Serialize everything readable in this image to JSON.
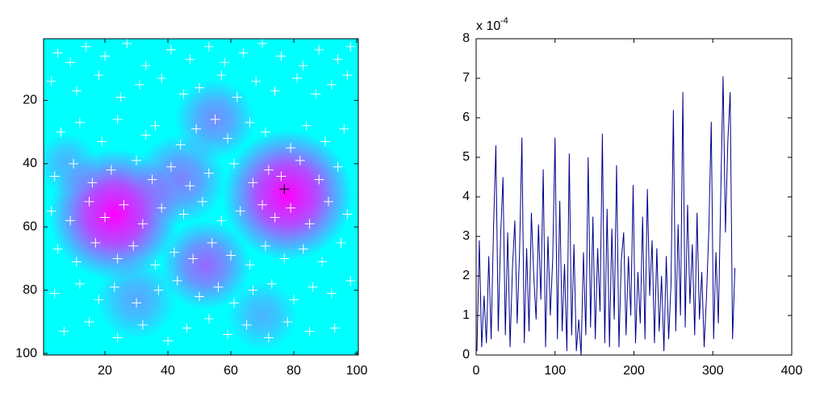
{
  "chart_data": [
    {
      "type": "scatter",
      "xlim": [
        0.5,
        100.5
      ],
      "ylim": [
        0.5,
        100.5
      ],
      "y_reversed": true,
      "xticks": [
        20,
        40,
        60,
        80,
        100
      ],
      "yticks": [
        20,
        40,
        60,
        80,
        100
      ],
      "background_color": "#00ffff",
      "hotspot_color": "#ff00ff",
      "hotspots": [
        {
          "x": 23,
          "y": 56,
          "radius": 13,
          "intensity": 1.0
        },
        {
          "x": 78,
          "y": 50,
          "radius": 13,
          "intensity": 1.0
        },
        {
          "x": 52,
          "y": 72,
          "radius": 9,
          "intensity": 0.6
        },
        {
          "x": 44,
          "y": 45,
          "radius": 9,
          "intensity": 0.5
        },
        {
          "x": 55,
          "y": 26,
          "radius": 8,
          "intensity": 0.45
        },
        {
          "x": 8,
          "y": 40,
          "radius": 6,
          "intensity": 0.3
        },
        {
          "x": 30,
          "y": 83,
          "radius": 8,
          "intensity": 0.35
        },
        {
          "x": 70,
          "y": 88,
          "radius": 7,
          "intensity": 0.3
        }
      ],
      "series": [
        {
          "color": "#ffffff",
          "x": [
            5,
            9,
            14,
            20,
            27,
            33,
            41,
            47,
            53,
            58,
            64,
            70,
            76,
            83,
            88,
            94,
            98,
            3,
            11,
            18,
            25,
            31,
            38,
            45,
            50,
            57,
            62,
            68,
            74,
            81,
            87,
            92,
            97,
            6,
            12,
            19,
            24,
            33,
            36,
            44,
            49,
            55,
            59,
            66,
            71,
            79,
            84,
            90,
            96,
            4,
            10,
            16,
            22,
            30,
            35,
            41,
            47,
            53,
            61,
            67,
            72,
            76,
            82,
            88,
            94,
            3,
            9,
            15,
            20,
            26,
            32,
            38,
            45,
            51,
            57,
            63,
            70,
            74,
            79,
            85,
            91,
            97,
            5,
            11,
            17,
            24,
            29,
            36,
            42,
            48,
            54,
            60,
            66,
            71,
            77,
            83,
            89,
            95,
            4,
            12,
            18,
            23,
            30,
            37,
            43,
            50,
            56,
            61,
            67,
            73,
            80,
            86,
            92,
            98,
            7,
            15,
            24,
            32,
            40,
            46,
            53,
            59,
            65,
            72,
            78,
            85,
            93
          ],
          "y": [
            5,
            8,
            3,
            6,
            2,
            9,
            4,
            7,
            3,
            8,
            5,
            2,
            6,
            9,
            4,
            7,
            3,
            14,
            17,
            12,
            19,
            15,
            13,
            18,
            16,
            12,
            19,
            14,
            17,
            13,
            18,
            15,
            12,
            30,
            27,
            33,
            26,
            31,
            28,
            34,
            29,
            26,
            32,
            27,
            30,
            35,
            28,
            33,
            29,
            44,
            40,
            46,
            42,
            39,
            45,
            41,
            47,
            43,
            40,
            46,
            42,
            44,
            39,
            45,
            41,
            55,
            58,
            52,
            57,
            53,
            59,
            54,
            56,
            52,
            58,
            55,
            53,
            57,
            54,
            59,
            52,
            56,
            67,
            71,
            65,
            70,
            66,
            72,
            68,
            70,
            65,
            69,
            72,
            66,
            70,
            67,
            71,
            65,
            81,
            78,
            83,
            79,
            84,
            80,
            77,
            82,
            79,
            84,
            80,
            78,
            83,
            79,
            81,
            77,
            93,
            90,
            95,
            91,
            96,
            92,
            89,
            94,
            91,
            95,
            90,
            93,
            92
          ]
        },
        {
          "color": "#000000",
          "x": [
            77
          ],
          "y": [
            48
          ]
        }
      ]
    },
    {
      "type": "line",
      "xlim": [
        0,
        400
      ],
      "ylim": [
        0,
        8
      ],
      "xticks": [
        0,
        100,
        200,
        300,
        400
      ],
      "yticks": [
        0,
        1,
        2,
        3,
        4,
        5,
        6,
        7,
        8
      ],
      "y_multiplier": {
        "base": "x 10",
        "exponent": "-4"
      },
      "x": [
        1,
        4,
        7,
        10,
        13,
        16,
        19,
        22,
        25,
        28,
        31,
        34,
        37,
        40,
        43,
        46,
        49,
        52,
        55,
        58,
        61,
        64,
        67,
        70,
        73,
        76,
        79,
        82,
        85,
        88,
        91,
        94,
        97,
        100,
        103,
        106,
        109,
        112,
        115,
        118,
        121,
        124,
        127,
        130,
        133,
        136,
        139,
        142,
        145,
        148,
        151,
        154,
        157,
        160,
        163,
        166,
        169,
        172,
        175,
        178,
        181,
        184,
        187,
        190,
        193,
        196,
        199,
        202,
        205,
        208,
        211,
        214,
        217,
        220,
        223,
        226,
        229,
        232,
        235,
        238,
        241,
        244,
        247,
        250,
        253,
        256,
        259,
        262,
        265,
        268,
        271,
        274,
        277,
        280,
        283,
        286,
        289,
        292,
        295,
        298,
        301,
        304,
        307,
        310,
        313,
        316,
        319,
        322,
        325,
        328
      ],
      "series": [
        {
          "color": "#00008b",
          "values": [
            0.1,
            2.9,
            0.2,
            1.5,
            0.3,
            2.5,
            0.4,
            3.2,
            5.3,
            0.6,
            3.0,
            4.5,
            0.5,
            3.1,
            0.2,
            2.2,
            3.4,
            0.8,
            2.6,
            5.5,
            0.3,
            2.7,
            0.6,
            3.6,
            2.0,
            0.9,
            3.3,
            1.4,
            4.7,
            0.2,
            3.0,
            1.0,
            2.4,
            5.5,
            0.4,
            3.9,
            0.6,
            2.3,
            0.1,
            5.1,
            0.5,
            2.8,
            0.1,
            0.9,
            0.0,
            2.6,
            0.5,
            5.0,
            0.7,
            3.5,
            0.4,
            2.7,
            1.1,
            5.6,
            0.3,
            3.7,
            0.2,
            3.2,
            0.9,
            4.8,
            0.2,
            2.4,
            3.1,
            0.5,
            2.5,
            1.0,
            4.3,
            0.3,
            2.1,
            0.8,
            3.5,
            0.4,
            4.2,
            1.5,
            2.9,
            0.3,
            2.7,
            0.6,
            2.0,
            0.1,
            2.5,
            0.4,
            1.8,
            6.2,
            0.6,
            3.3,
            1.0,
            6.65,
            0.7,
            3.8,
            1.3,
            2.8,
            0.5,
            3.6,
            0.9,
            2.1,
            0.2,
            1.5,
            3.2,
            5.9,
            0.4,
            2.6,
            0.8,
            4.0,
            7.05,
            3.1,
            5.4,
            6.65,
            0.4,
            2.2
          ]
        }
      ]
    }
  ]
}
